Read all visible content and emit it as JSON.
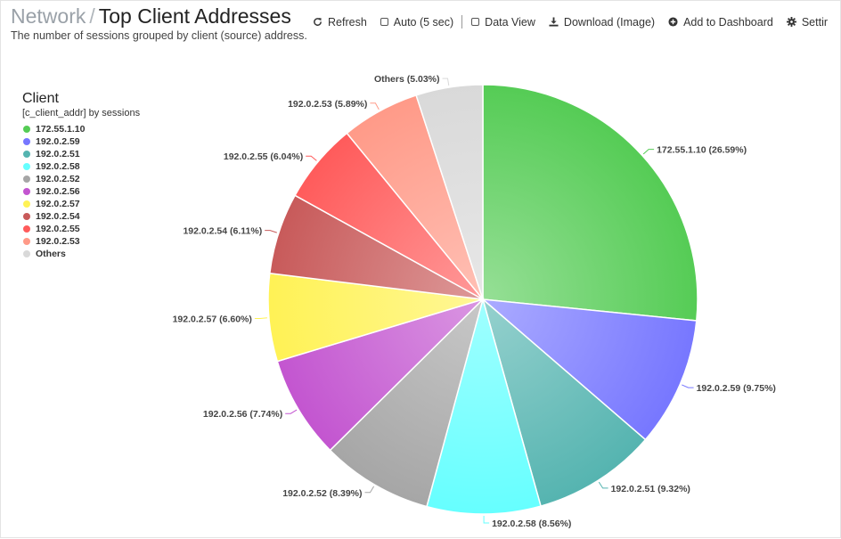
{
  "breadcrumb": {
    "parent": "Network",
    "separator": "/",
    "title": "Top Client Addresses"
  },
  "subtitle": "The number of sessions grouped by client (source) address.",
  "toolbar": {
    "refresh": "Refresh",
    "auto": "Auto (5 sec)",
    "data_view": "Data View",
    "download": "Download (Image)",
    "add_dashboard": "Add to Dashboard",
    "settings": "Settir"
  },
  "legend": {
    "title": "Client",
    "subtitle": "[c_client_addr] by sessions"
  },
  "chart_data": {
    "type": "pie",
    "series": [
      {
        "name": "172.55.1.10",
        "value": 26.59,
        "label": "172.55.1.10 (26.59%)",
        "color": "#55cc55"
      },
      {
        "name": "192.0.2.59",
        "value": 9.75,
        "label": "192.0.2.59 (9.75%)",
        "color": "#7777ff"
      },
      {
        "name": "192.0.2.51",
        "value": 9.32,
        "label": "192.0.2.51 (9.32%)",
        "color": "#55b4b0"
      },
      {
        "name": "192.0.2.58",
        "value": 8.56,
        "label": "192.0.2.58 (8.56%)",
        "color": "#66ffff"
      },
      {
        "name": "192.0.2.52",
        "value": 8.39,
        "label": "192.0.2.52 (8.39%)",
        "color": "#a6a6a6"
      },
      {
        "name": "192.0.2.56",
        "value": 7.74,
        "label": "192.0.2.56 (7.74%)",
        "color": "#c355d0"
      },
      {
        "name": "192.0.2.57",
        "value": 6.6,
        "label": "192.0.2.57 (6.60%)",
        "color": "#fff255"
      },
      {
        "name": "192.0.2.54",
        "value": 6.11,
        "label": "192.0.2.54 (6.11%)",
        "color": "#c85a5a"
      },
      {
        "name": "192.0.2.55",
        "value": 6.04,
        "label": "192.0.2.55 (6.04%)",
        "color": "#ff5b5b"
      },
      {
        "name": "192.0.2.53",
        "value": 5.89,
        "label": "192.0.2.53 (5.89%)",
        "color": "#ff9a88"
      },
      {
        "name": "Others",
        "value": 5.03,
        "label": "Others (5.03%)",
        "color": "#d9d9d9"
      }
    ]
  }
}
